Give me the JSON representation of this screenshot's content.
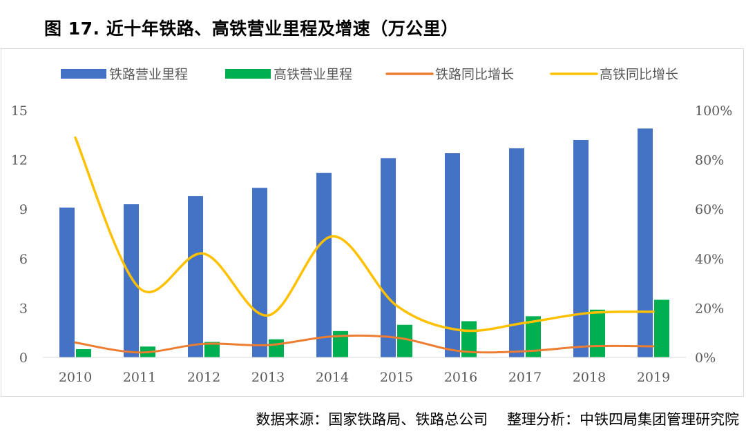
{
  "title": "图 17. 近十年铁路、高铁营业里程及增速（万公里）",
  "source": "数据来源：国家铁路局、铁路总公司　 整理分析：中铁四局集团管理研究院",
  "colors": {
    "rail_bar": "#4472C4",
    "hsr_bar": "#00B050",
    "rail_growth": "#ED7D31",
    "hsr_growth": "#FFC000"
  },
  "chart_data": {
    "type": "bar",
    "title": "近十年铁路、高铁营业里程及增速（万公里）",
    "categories": [
      "2010",
      "2011",
      "2012",
      "2013",
      "2014",
      "2015",
      "2016",
      "2017",
      "2018",
      "2019"
    ],
    "series": [
      {
        "name": "铁路营业里程",
        "type": "bar",
        "axis": "left",
        "values": [
          9.1,
          9.3,
          9.8,
          10.3,
          11.2,
          12.1,
          12.4,
          12.7,
          13.2,
          13.9
        ]
      },
      {
        "name": "高铁营业里程",
        "type": "bar",
        "axis": "left",
        "values": [
          0.5,
          0.66,
          0.94,
          1.1,
          1.6,
          1.98,
          2.2,
          2.5,
          2.9,
          3.5
        ]
      },
      {
        "name": "铁路同比增长",
        "type": "line",
        "axis": "right",
        "values": [
          0.06,
          0.02,
          0.055,
          0.05,
          0.085,
          0.08,
          0.025,
          0.025,
          0.045,
          0.045
        ]
      },
      {
        "name": "高铁同比增长",
        "type": "line",
        "axis": "right",
        "values": [
          0.89,
          0.28,
          0.42,
          0.17,
          0.49,
          0.21,
          0.11,
          0.14,
          0.18,
          0.185
        ]
      }
    ],
    "y_left": {
      "range": [
        0,
        15
      ],
      "ticks": [
        "0",
        "3",
        "6",
        "9",
        "12",
        "15"
      ]
    },
    "y_right": {
      "range": [
        0,
        1
      ],
      "ticks": [
        "0%",
        "20%",
        "40%",
        "60%",
        "80%",
        "100%"
      ]
    },
    "legend_position": "top",
    "grid": false
  }
}
